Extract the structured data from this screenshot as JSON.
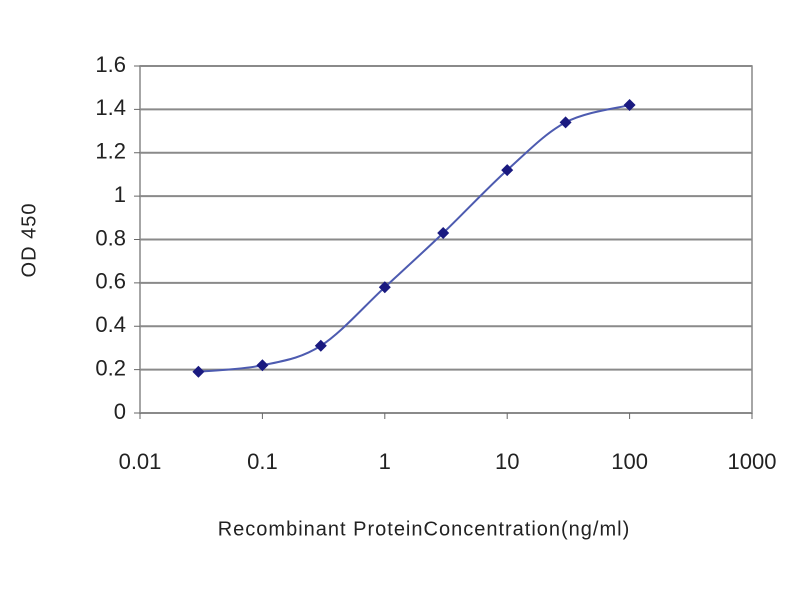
{
  "chart_data": {
    "type": "line",
    "xlabel": "Recombinant ProteinConcentration(ng/ml)",
    "ylabel": "OD 450",
    "x": [
      0.03,
      0.1,
      0.3,
      1,
      3,
      10,
      30,
      100
    ],
    "series": [
      {
        "color": "#1a1a80",
        "line_color": "#4d5bb0",
        "values": [
          0.19,
          0.22,
          0.31,
          0.58,
          0.83,
          1.12,
          1.34,
          1.42
        ]
      }
    ],
    "xlim": [
      0.01,
      1000
    ],
    "xticks": [
      0.01,
      0.1,
      1,
      10,
      100,
      1000
    ],
    "xscale": "log",
    "ylim": [
      0,
      1.6
    ],
    "yticks": [
      0,
      0.2,
      0.4,
      0.6,
      0.8,
      1,
      1.2,
      1.4,
      1.6
    ],
    "grid": true
  }
}
